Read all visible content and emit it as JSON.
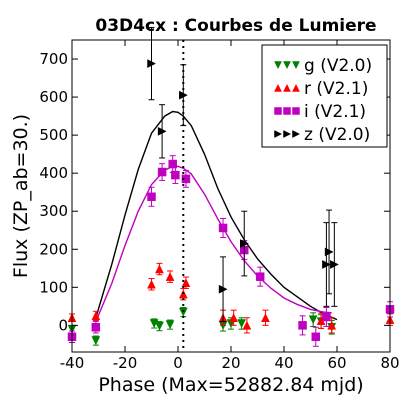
{
  "chart_data": {
    "type": "scatter",
    "title": "03D4cx : Courbes de Lumiere",
    "xlabel": "Phase (Max=52882.84 mjd)",
    "ylabel": "Flux (ZP_ab=30.)",
    "xlim": [
      -40,
      80
    ],
    "ylim": [
      -70,
      750
    ],
    "xticks": [
      -40,
      -20,
      0,
      20,
      40,
      60,
      80
    ],
    "yticks": [
      0,
      100,
      200,
      300,
      400,
      500,
      600,
      700
    ],
    "xtick_labels": [
      "-40",
      "-20",
      "0",
      "20",
      "40",
      "60",
      "80"
    ],
    "ytick_labels": [
      "0",
      "100",
      "200",
      "300",
      "400",
      "500",
      "600",
      "700"
    ],
    "max_line_x": 2,
    "legend_position": "top-right",
    "series": [
      {
        "name": "g (V2.0)",
        "marker": "triangle-down",
        "color": "#008000",
        "points": [
          {
            "x": -40,
            "y": -10,
            "err": 10
          },
          {
            "x": -31,
            "y": -40,
            "err": 12
          },
          {
            "x": -9,
            "y": 5,
            "err": 12
          },
          {
            "x": -7,
            "y": -2,
            "err": 12
          },
          {
            "x": -3,
            "y": 2,
            "err": 12
          },
          {
            "x": 2,
            "y": 35,
            "err": 12
          },
          {
            "x": 17,
            "y": 0,
            "err": 15
          },
          {
            "x": 20,
            "y": 5,
            "err": 15
          },
          {
            "x": 24,
            "y": 5,
            "err": 15
          },
          {
            "x": 51,
            "y": 15,
            "err": 18
          },
          {
            "x": 54,
            "y": 10,
            "err": 18
          },
          {
            "x": 58,
            "y": -5,
            "err": 18
          }
        ]
      },
      {
        "name": "r (V2.1)",
        "marker": "triangle-up",
        "color": "#ff0000",
        "points": [
          {
            "x": -40,
            "y": 20,
            "err": 10
          },
          {
            "x": -31,
            "y": 25,
            "err": 12
          },
          {
            "x": -10,
            "y": 108,
            "err": 15
          },
          {
            "x": -7,
            "y": 148,
            "err": 15
          },
          {
            "x": -3,
            "y": 128,
            "err": 15
          },
          {
            "x": 2,
            "y": 82,
            "err": 15
          },
          {
            "x": 3,
            "y": 112,
            "err": 15
          },
          {
            "x": 17,
            "y": 20,
            "err": 20
          },
          {
            "x": 21,
            "y": 20,
            "err": 20
          },
          {
            "x": 26,
            "y": 0,
            "err": 20
          },
          {
            "x": 33,
            "y": 20,
            "err": 20
          },
          {
            "x": 54,
            "y": 12,
            "err": 20
          },
          {
            "x": 58,
            "y": 0,
            "err": 20
          },
          {
            "x": 80,
            "y": 15,
            "err": 15
          }
        ]
      },
      {
        "name": "i (V2.1)",
        "marker": "square",
        "color": "#c000c0",
        "points": [
          {
            "x": -40,
            "y": -30,
            "err": 15
          },
          {
            "x": -31,
            "y": -5,
            "err": 15
          },
          {
            "x": -10,
            "y": 338,
            "err": 25
          },
          {
            "x": -6,
            "y": 403,
            "err": 22
          },
          {
            "x": -2,
            "y": 424,
            "err": 22
          },
          {
            "x": -1,
            "y": 395,
            "err": 22
          },
          {
            "x": 3,
            "y": 385,
            "err": 22
          },
          {
            "x": 17,
            "y": 256,
            "err": 25
          },
          {
            "x": 25,
            "y": 198,
            "err": 25
          },
          {
            "x": 31,
            "y": 128,
            "err": 25
          },
          {
            "x": 47,
            "y": 0,
            "err": 25
          },
          {
            "x": 52,
            "y": -30,
            "err": 25
          },
          {
            "x": 56,
            "y": 22,
            "err": 25
          },
          {
            "x": 80,
            "y": 42,
            "err": 20
          }
        ]
      },
      {
        "name": "z (V2.0)",
        "marker": "triangle-right",
        "color": "#000000",
        "points": [
          {
            "x": -10,
            "y": 688,
            "err": 95
          },
          {
            "x": -6,
            "y": 510,
            "err": 70
          },
          {
            "x": 2,
            "y": 605,
            "err": 80
          },
          {
            "x": 17,
            "y": 95,
            "err": 85
          },
          {
            "x": 25,
            "y": 215,
            "err": 85
          },
          {
            "x": 56,
            "y": 160,
            "err": 110
          },
          {
            "x": 57,
            "y": 193,
            "err": 110
          },
          {
            "x": 59,
            "y": 160,
            "err": 110
          }
        ]
      }
    ],
    "fits": [
      {
        "color": "#000000",
        "x": [
          -31,
          -25,
          -20,
          -15,
          -10,
          -5,
          -2,
          0,
          2,
          5,
          10,
          15,
          20,
          25,
          30,
          35,
          40,
          45,
          50,
          55,
          60
        ],
        "y": [
          20,
          160,
          290,
          410,
          505,
          550,
          562,
          560,
          550,
          525,
          450,
          360,
          285,
          225,
          175,
          135,
          100,
          75,
          50,
          30,
          15
        ]
      },
      {
        "color": "#c000c0",
        "x": [
          -31,
          -25,
          -20,
          -15,
          -10,
          -5,
          -2,
          0,
          2,
          5,
          10,
          15,
          20,
          25,
          30,
          35,
          40,
          45,
          50,
          55,
          58
        ],
        "y": [
          10,
          110,
          210,
          300,
          370,
          408,
          418,
          418,
          413,
          398,
          345,
          280,
          220,
          170,
          130,
          98,
          72,
          55,
          42,
          35,
          33
        ]
      }
    ]
  },
  "legend": {
    "items": [
      {
        "label": "g (V2.0)",
        "marker": "triangle-down",
        "color": "#008000"
      },
      {
        "label": "r (V2.1)",
        "marker": "triangle-up",
        "color": "#ff0000"
      },
      {
        "label": "i (V2.1)",
        "marker": "square",
        "color": "#c000c0"
      },
      {
        "label": "z (V2.0)",
        "marker": "triangle-right",
        "color": "#000000"
      }
    ]
  }
}
